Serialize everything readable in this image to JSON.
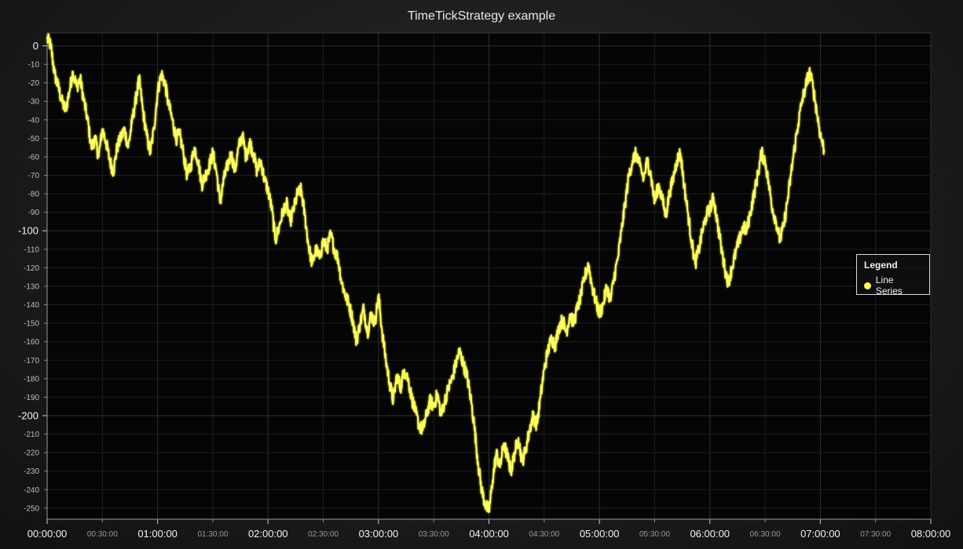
{
  "chart_data": {
    "type": "line",
    "title": "TimeTickStrategy example",
    "xlabel": "",
    "ylabel": "",
    "x_range": [
      "00:00:00",
      "08:00:00"
    ],
    "ylim": [
      -256,
      7
    ],
    "grid": true,
    "legend": {
      "title": "Legend",
      "placement": "right"
    },
    "major_x_ticks": [
      "00:00:00",
      "01:00:00",
      "02:00:00",
      "03:00:00",
      "04:00:00",
      "05:00:00",
      "06:00:00",
      "07:00:00",
      "08:00:00"
    ],
    "minor_x_ticks": [
      "00:30:00",
      "01:30:00",
      "02:30:00",
      "03:30:00",
      "04:30:00",
      "05:30:00",
      "06:30:00",
      "07:30:00"
    ],
    "major_y_ticks": [
      0,
      -100,
      -200
    ],
    "minor_y_ticks": [
      -10,
      -20,
      -30,
      -40,
      -50,
      -60,
      -70,
      -80,
      -90,
      -110,
      -120,
      -130,
      -140,
      -150,
      -160,
      -170,
      -180,
      -190,
      -210,
      -220,
      -230,
      -240,
      -250
    ],
    "series": [
      {
        "name": "Line Series",
        "color": "#ffff5a",
        "points": [
          [
            "00:00:00",
            4
          ],
          [
            "00:02:00",
            0
          ],
          [
            "00:04:00",
            -15
          ],
          [
            "00:06:00",
            -22
          ],
          [
            "00:08:00",
            -30
          ],
          [
            "00:10:00",
            -35
          ],
          [
            "00:12:00",
            -25
          ],
          [
            "00:14:00",
            -14
          ],
          [
            "00:16:00",
            -22
          ],
          [
            "00:18:00",
            -18
          ],
          [
            "00:20:00",
            -30
          ],
          [
            "00:22:00",
            -40
          ],
          [
            "00:24:00",
            -55
          ],
          [
            "00:26:00",
            -50
          ],
          [
            "00:28:00",
            -60
          ],
          [
            "00:30:00",
            -45
          ],
          [
            "00:32:00",
            -52
          ],
          [
            "00:34:00",
            -62
          ],
          [
            "00:36:00",
            -68
          ],
          [
            "00:38:00",
            -55
          ],
          [
            "00:40:00",
            -50
          ],
          [
            "00:42:00",
            -45
          ],
          [
            "00:44:00",
            -55
          ],
          [
            "00:46:00",
            -42
          ],
          [
            "00:48:00",
            -30
          ],
          [
            "00:50:00",
            -18
          ],
          [
            "00:52:00",
            -35
          ],
          [
            "00:54:00",
            -48
          ],
          [
            "00:56:00",
            -58
          ],
          [
            "00:58:00",
            -45
          ],
          [
            "01:00:00",
            -25
          ],
          [
            "01:02:00",
            -15
          ],
          [
            "01:04:00",
            -20
          ],
          [
            "01:06:00",
            -32
          ],
          [
            "01:08:00",
            -40
          ],
          [
            "01:10:00",
            -50
          ],
          [
            "01:12:00",
            -48
          ],
          [
            "01:14:00",
            -58
          ],
          [
            "01:16:00",
            -70
          ],
          [
            "01:18:00",
            -65
          ],
          [
            "01:20:00",
            -55
          ],
          [
            "01:22:00",
            -62
          ],
          [
            "01:24:00",
            -75
          ],
          [
            "01:26:00",
            -70
          ],
          [
            "01:28:00",
            -65
          ],
          [
            "01:30:00",
            -58
          ],
          [
            "01:32:00",
            -68
          ],
          [
            "01:34:00",
            -85
          ],
          [
            "01:36:00",
            -72
          ],
          [
            "01:38:00",
            -65
          ],
          [
            "01:40:00",
            -58
          ],
          [
            "01:42:00",
            -68
          ],
          [
            "01:44:00",
            -55
          ],
          [
            "01:46:00",
            -48
          ],
          [
            "01:48:00",
            -60
          ],
          [
            "01:50:00",
            -52
          ],
          [
            "01:52:00",
            -58
          ],
          [
            "01:54:00",
            -68
          ],
          [
            "01:56:00",
            -62
          ],
          [
            "01:58:00",
            -72
          ],
          [
            "02:00:00",
            -78
          ],
          [
            "02:02:00",
            -88
          ],
          [
            "02:04:00",
            -105
          ],
          [
            "02:06:00",
            -98
          ],
          [
            "02:08:00",
            -90
          ],
          [
            "02:10:00",
            -85
          ],
          [
            "02:12:00",
            -95
          ],
          [
            "02:14:00",
            -88
          ],
          [
            "02:16:00",
            -80
          ],
          [
            "02:18:00",
            -78
          ],
          [
            "02:20:00",
            -92
          ],
          [
            "02:22:00",
            -108
          ],
          [
            "02:24:00",
            -118
          ],
          [
            "02:26:00",
            -110
          ],
          [
            "02:28:00",
            -115
          ],
          [
            "02:30:00",
            -105
          ],
          [
            "02:32:00",
            -110
          ],
          [
            "02:34:00",
            -102
          ],
          [
            "02:36:00",
            -110
          ],
          [
            "02:38:00",
            -115
          ],
          [
            "02:40:00",
            -128
          ],
          [
            "02:42:00",
            -135
          ],
          [
            "02:44:00",
            -140
          ],
          [
            "02:46:00",
            -148
          ],
          [
            "02:48:00",
            -160
          ],
          [
            "02:50:00",
            -150
          ],
          [
            "02:52:00",
            -142
          ],
          [
            "02:54:00",
            -155
          ],
          [
            "02:56:00",
            -145
          ],
          [
            "02:58:00",
            -150
          ],
          [
            "03:00:00",
            -135
          ],
          [
            "03:02:00",
            -155
          ],
          [
            "03:04:00",
            -170
          ],
          [
            "03:06:00",
            -182
          ],
          [
            "03:08:00",
            -192
          ],
          [
            "03:10:00",
            -178
          ],
          [
            "03:12:00",
            -185
          ],
          [
            "03:14:00",
            -175
          ],
          [
            "03:16:00",
            -180
          ],
          [
            "03:18:00",
            -190
          ],
          [
            "03:20:00",
            -198
          ],
          [
            "03:22:00",
            -205
          ],
          [
            "03:24:00",
            -208
          ],
          [
            "03:26:00",
            -200
          ],
          [
            "03:28:00",
            -192
          ],
          [
            "03:30:00",
            -195
          ],
          [
            "03:32:00",
            -188
          ],
          [
            "03:34:00",
            -200
          ],
          [
            "03:36:00",
            -192
          ],
          [
            "03:38:00",
            -185
          ],
          [
            "03:40:00",
            -180
          ],
          [
            "03:42:00",
            -172
          ],
          [
            "03:44:00",
            -165
          ],
          [
            "03:46:00",
            -172
          ],
          [
            "03:48:00",
            -178
          ],
          [
            "03:50:00",
            -190
          ],
          [
            "03:52:00",
            -205
          ],
          [
            "03:54:00",
            -225
          ],
          [
            "03:56:00",
            -240
          ],
          [
            "03:58:00",
            -248
          ],
          [
            "04:00:00",
            -252
          ],
          [
            "04:02:00",
            -235
          ],
          [
            "04:04:00",
            -220
          ],
          [
            "04:06:00",
            -228
          ],
          [
            "04:08:00",
            -215
          ],
          [
            "04:10:00",
            -222
          ],
          [
            "04:12:00",
            -230
          ],
          [
            "04:14:00",
            -220
          ],
          [
            "04:16:00",
            -212
          ],
          [
            "04:18:00",
            -225
          ],
          [
            "04:20:00",
            -218
          ],
          [
            "04:22:00",
            -208
          ],
          [
            "04:24:00",
            -200
          ],
          [
            "04:26:00",
            -205
          ],
          [
            "04:28:00",
            -190
          ],
          [
            "04:30:00",
            -175
          ],
          [
            "04:32:00",
            -165
          ],
          [
            "04:34:00",
            -158
          ],
          [
            "04:36:00",
            -162
          ],
          [
            "04:38:00",
            -152
          ],
          [
            "04:40:00",
            -148
          ],
          [
            "04:42:00",
            -155
          ],
          [
            "04:44:00",
            -145
          ],
          [
            "04:46:00",
            -150
          ],
          [
            "04:48:00",
            -142
          ],
          [
            "04:50:00",
            -135
          ],
          [
            "04:52:00",
            -125
          ],
          [
            "04:54:00",
            -118
          ],
          [
            "04:56:00",
            -130
          ],
          [
            "04:58:00",
            -138
          ],
          [
            "05:00:00",
            -145
          ],
          [
            "05:02:00",
            -140
          ],
          [
            "05:04:00",
            -130
          ],
          [
            "05:06:00",
            -138
          ],
          [
            "05:08:00",
            -125
          ],
          [
            "05:10:00",
            -115
          ],
          [
            "05:12:00",
            -100
          ],
          [
            "05:14:00",
            -85
          ],
          [
            "05:16:00",
            -70
          ],
          [
            "05:18:00",
            -62
          ],
          [
            "05:20:00",
            -58
          ],
          [
            "05:22:00",
            -65
          ],
          [
            "05:24:00",
            -72
          ],
          [
            "05:26:00",
            -62
          ],
          [
            "05:28:00",
            -70
          ],
          [
            "05:30:00",
            -85
          ],
          [
            "05:32:00",
            -75
          ],
          [
            "05:34:00",
            -82
          ],
          [
            "05:36:00",
            -92
          ],
          [
            "05:38:00",
            -80
          ],
          [
            "05:40:00",
            -72
          ],
          [
            "05:42:00",
            -62
          ],
          [
            "05:44:00",
            -58
          ],
          [
            "05:46:00",
            -75
          ],
          [
            "05:48:00",
            -90
          ],
          [
            "05:50:00",
            -105
          ],
          [
            "05:52:00",
            -118
          ],
          [
            "05:54:00",
            -110
          ],
          [
            "05:56:00",
            -100
          ],
          [
            "05:58:00",
            -92
          ],
          [
            "06:00:00",
            -88
          ],
          [
            "06:02:00",
            -82
          ],
          [
            "06:04:00",
            -95
          ],
          [
            "06:06:00",
            -108
          ],
          [
            "06:08:00",
            -120
          ],
          [
            "06:10:00",
            -128
          ],
          [
            "06:12:00",
            -120
          ],
          [
            "06:14:00",
            -112
          ],
          [
            "06:16:00",
            -105
          ],
          [
            "06:18:00",
            -98
          ],
          [
            "06:20:00",
            -100
          ],
          [
            "06:22:00",
            -90
          ],
          [
            "06:24:00",
            -80
          ],
          [
            "06:26:00",
            -70
          ],
          [
            "06:28:00",
            -58
          ],
          [
            "06:30:00",
            -62
          ],
          [
            "06:32:00",
            -75
          ],
          [
            "06:34:00",
            -88
          ],
          [
            "06:36:00",
            -95
          ],
          [
            "06:38:00",
            -105
          ],
          [
            "06:40:00",
            -98
          ],
          [
            "06:42:00",
            -85
          ],
          [
            "06:44:00",
            -70
          ],
          [
            "06:46:00",
            -55
          ],
          [
            "06:48:00",
            -42
          ],
          [
            "06:50:00",
            -30
          ],
          [
            "06:52:00",
            -22
          ],
          [
            "06:54:00",
            -14
          ],
          [
            "06:56:00",
            -22
          ],
          [
            "06:58:00",
            -35
          ],
          [
            "07:00:00",
            -48
          ],
          [
            "07:02:00",
            -56
          ]
        ]
      }
    ]
  },
  "legend_box": {
    "title": "Legend",
    "entry_label": "Line Series"
  }
}
